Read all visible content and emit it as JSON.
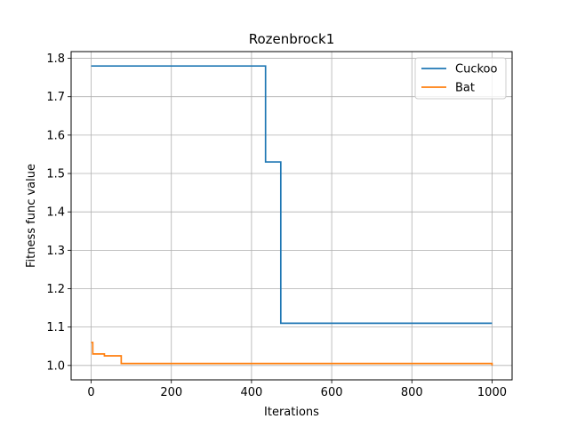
{
  "chart_data": {
    "type": "line",
    "title": "Rozenbrock1",
    "xlabel": "Iterations",
    "ylabel": "Fitness func value",
    "xlim": [
      -50,
      1050
    ],
    "ylim": [
      0.9625,
      1.8175
    ],
    "xticks": [
      0,
      200,
      400,
      600,
      800,
      1000
    ],
    "yticks": [
      1.0,
      1.1,
      1.2,
      1.3,
      1.4,
      1.5,
      1.6,
      1.7,
      1.8
    ],
    "grid": true,
    "legend_position": "top-right",
    "series": [
      {
        "name": "Cuckoo",
        "color": "#1f77b4",
        "step": true,
        "x": [
          0,
          435,
          473,
          1000
        ],
        "y": [
          1.78,
          1.53,
          1.11,
          1.11
        ]
      },
      {
        "name": "Bat",
        "color": "#ff7f0e",
        "step": true,
        "x": [
          0,
          4,
          33,
          75,
          1000
        ],
        "y": [
          1.06,
          1.03,
          1.025,
          1.005,
          1.0
        ]
      }
    ]
  }
}
